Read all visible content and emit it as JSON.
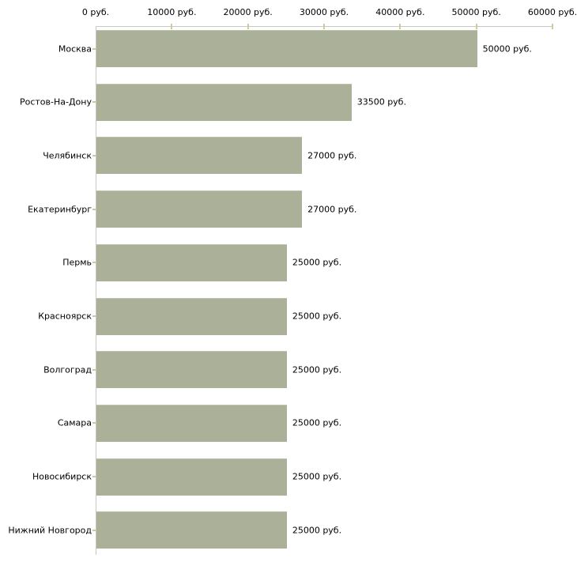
{
  "chart_data": {
    "type": "bar",
    "orientation": "horizontal",
    "title": "",
    "unit": "руб.",
    "categories": [
      "Москва",
      "Ростов-На-Дону",
      "Челябинск",
      "Екатеринбург",
      "Пермь",
      "Красноярск",
      "Волгоград",
      "Самара",
      "Новосибирск",
      "Нижний Новгород"
    ],
    "values": [
      50000,
      33500,
      27000,
      27000,
      25000,
      25000,
      25000,
      25000,
      25000,
      25000
    ],
    "value_labels": [
      "50000 руб.",
      "33500 руб.",
      "27000 руб.",
      "27000 руб.",
      "25000 руб.",
      "25000 руб.",
      "25000 руб.",
      "25000 руб.",
      "25000 руб.",
      "25000 руб."
    ],
    "x_axis": {
      "position": "top",
      "min": 0,
      "max": 60000,
      "ticks": [
        0,
        10000,
        20000,
        30000,
        40000,
        50000,
        60000
      ],
      "tick_labels": [
        "0 руб.",
        "10000 руб.",
        "20000 руб.",
        "30000 руб.",
        "40000 руб.",
        "50000 руб.",
        "60000 руб."
      ]
    },
    "grid": false,
    "legend": false,
    "colors": {
      "bar": "#ABB198",
      "bar_highlight": "#BDC2AC",
      "axis_line": "#C8C8C2",
      "axis_tick": "#CCCC99",
      "category_tick": "#C9C9A1",
      "text": "#000000",
      "background": "#ffffff"
    }
  }
}
